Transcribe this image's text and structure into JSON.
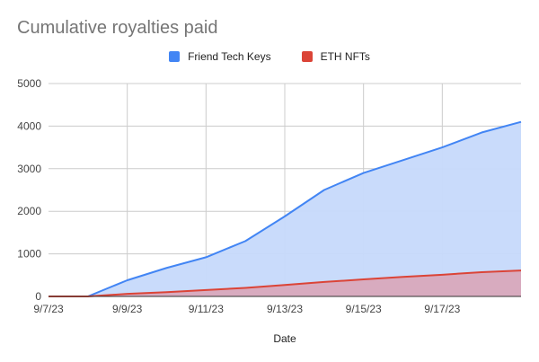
{
  "chart_data": {
    "type": "area",
    "title": "Cumulative royalties paid",
    "xlabel": "Date",
    "ylabel": "",
    "ylim": [
      0,
      5000
    ],
    "yticks": [
      0,
      1000,
      2000,
      3000,
      4000,
      5000
    ],
    "x_range": [
      "9/7/23",
      "9/19/23"
    ],
    "xticks": [
      "9/7/23",
      "9/9/23",
      "9/11/23",
      "9/13/23",
      "9/15/23",
      "9/17/23"
    ],
    "x": [
      "9/7/23",
      "9/8/23",
      "9/9/23",
      "9/10/23",
      "9/11/23",
      "9/12/23",
      "9/13/23",
      "9/14/23",
      "9/15/23",
      "9/16/23",
      "9/17/23",
      "9/18/23",
      "9/19/23"
    ],
    "legend_position": "top",
    "grid": true,
    "series": [
      {
        "name": "Friend Tech Keys",
        "color": "#4285f4",
        "fill": "#c6d9fb",
        "values": [
          0,
          0,
          380,
          670,
          920,
          1300,
          1880,
          2500,
          2900,
          3200,
          3500,
          3850,
          4100
        ]
      },
      {
        "name": "ETH NFTs",
        "color": "#db4437",
        "fill": "#d9a9bc",
        "values": [
          0,
          0,
          60,
          100,
          150,
          200,
          270,
          340,
          400,
          460,
          510,
          570,
          610
        ]
      }
    ]
  }
}
